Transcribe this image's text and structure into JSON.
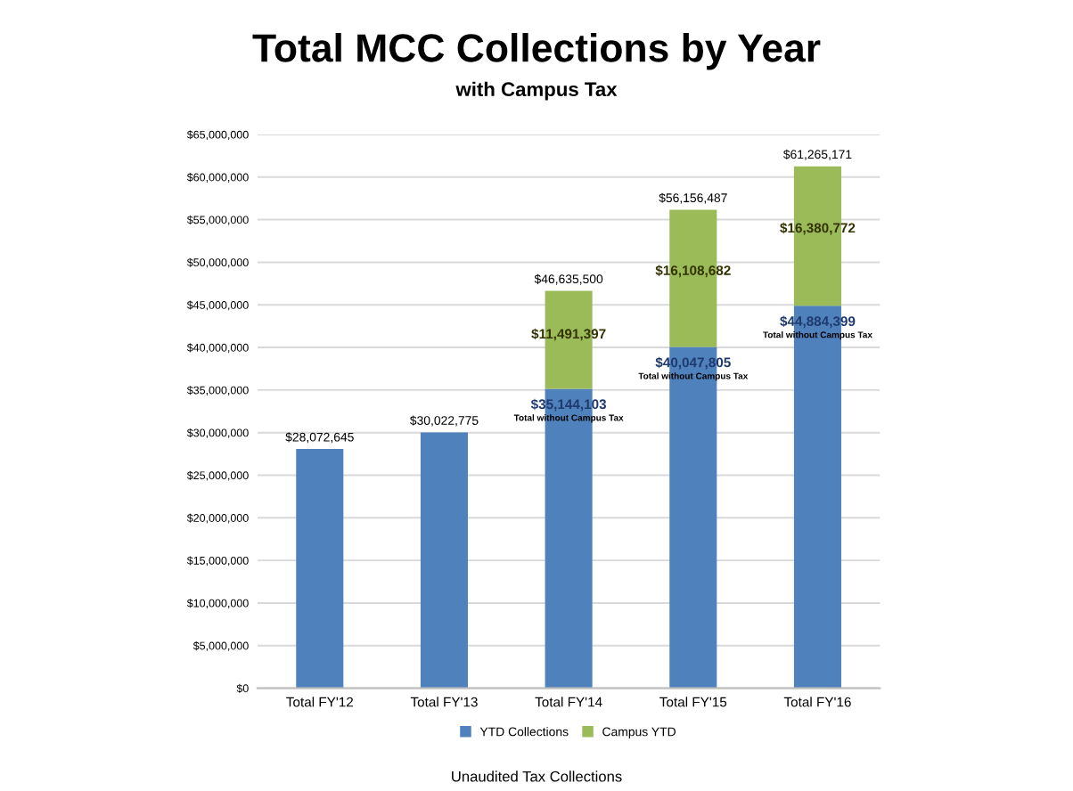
{
  "chart_data": {
    "type": "bar",
    "title": "Total MCC Collections by Year",
    "subtitle": "with Campus Tax",
    "annotations": [
      "Unaudited Tax Collections"
    ],
    "categories": [
      "Total FY'12",
      "Total FY'13",
      "Total FY'14",
      "Total FY'15",
      "Total FY'16"
    ],
    "stacked": true,
    "series": [
      {
        "name": "YTD Collections",
        "color": "#4f81bd",
        "values": [
          28072645,
          30022775,
          35144103,
          40047805,
          44884399
        ],
        "value_labels": [
          "$28,072,645",
          "$30,022,775",
          "$35,144,103\nTotal without Campus Tax",
          "$40,047,805\nTotal without Campus Tax",
          "$44,884,399\nTotal without Campus Tax"
        ]
      },
      {
        "name": "Campus YTD",
        "color": "#9bbb59",
        "values": [
          null,
          null,
          11491397,
          16108682,
          16380772
        ],
        "value_labels": [
          null,
          null,
          "$11,491,397",
          "$16,108,682",
          "$16,380,772"
        ]
      }
    ],
    "totals": [
      null,
      null,
      "$46,635,500",
      "$56,156,487",
      "$61,265,171"
    ],
    "ylim": [
      0,
      65000000
    ],
    "yticks": [
      {
        "value": 0,
        "label": "$0"
      },
      {
        "value": 5000000,
        "label": "$5,000,000"
      },
      {
        "value": 10000000,
        "label": "$10,000,000"
      },
      {
        "value": 15000000,
        "label": "$15,000,000"
      },
      {
        "value": 20000000,
        "label": "$20,000,000"
      },
      {
        "value": 25000000,
        "label": "$25,000,000"
      },
      {
        "value": 30000000,
        "label": "$30,000,000"
      },
      {
        "value": 35000000,
        "label": "$35,000,000"
      },
      {
        "value": 40000000,
        "label": "$40,000,000"
      },
      {
        "value": 45000000,
        "label": "$45,000,000"
      },
      {
        "value": 50000000,
        "label": "$50,000,000"
      },
      {
        "value": 55000000,
        "label": "$55,000,000"
      },
      {
        "value": 60000000,
        "label": "$60,000,000"
      },
      {
        "value": 65000000,
        "label": "$65,000,000"
      }
    ],
    "grid": "y",
    "legend": "bottom"
  }
}
